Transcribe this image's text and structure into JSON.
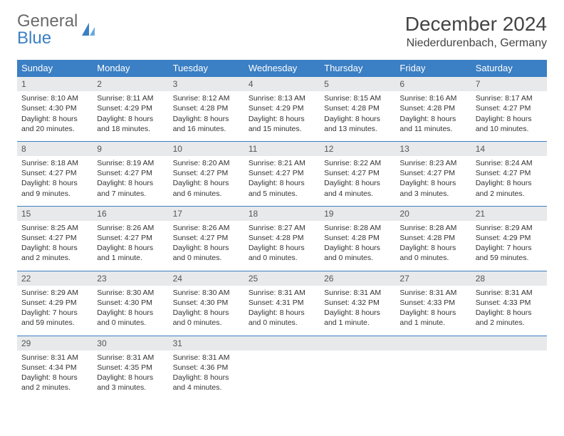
{
  "logo": {
    "top": "General",
    "bottom": "Blue",
    "icon_color": "#3b7fc4"
  },
  "title": "December 2024",
  "location": "Niederdurenbach, Germany",
  "colors": {
    "header_bg": "#3b7fc4",
    "header_fg": "#ffffff",
    "daynum_bg": "#e7e9ea",
    "daynum_border": "#3b7fc4",
    "text": "#333333"
  },
  "weekdays": [
    "Sunday",
    "Monday",
    "Tuesday",
    "Wednesday",
    "Thursday",
    "Friday",
    "Saturday"
  ],
  "weeks": [
    [
      {
        "n": "1",
        "sr": "Sunrise: 8:10 AM",
        "ss": "Sunset: 4:30 PM",
        "d1": "Daylight: 8 hours",
        "d2": "and 20 minutes."
      },
      {
        "n": "2",
        "sr": "Sunrise: 8:11 AM",
        "ss": "Sunset: 4:29 PM",
        "d1": "Daylight: 8 hours",
        "d2": "and 18 minutes."
      },
      {
        "n": "3",
        "sr": "Sunrise: 8:12 AM",
        "ss": "Sunset: 4:28 PM",
        "d1": "Daylight: 8 hours",
        "d2": "and 16 minutes."
      },
      {
        "n": "4",
        "sr": "Sunrise: 8:13 AM",
        "ss": "Sunset: 4:29 PM",
        "d1": "Daylight: 8 hours",
        "d2": "and 15 minutes."
      },
      {
        "n": "5",
        "sr": "Sunrise: 8:15 AM",
        "ss": "Sunset: 4:28 PM",
        "d1": "Daylight: 8 hours",
        "d2": "and 13 minutes."
      },
      {
        "n": "6",
        "sr": "Sunrise: 8:16 AM",
        "ss": "Sunset: 4:28 PM",
        "d1": "Daylight: 8 hours",
        "d2": "and 11 minutes."
      },
      {
        "n": "7",
        "sr": "Sunrise: 8:17 AM",
        "ss": "Sunset: 4:27 PM",
        "d1": "Daylight: 8 hours",
        "d2": "and 10 minutes."
      }
    ],
    [
      {
        "n": "8",
        "sr": "Sunrise: 8:18 AM",
        "ss": "Sunset: 4:27 PM",
        "d1": "Daylight: 8 hours",
        "d2": "and 9 minutes."
      },
      {
        "n": "9",
        "sr": "Sunrise: 8:19 AM",
        "ss": "Sunset: 4:27 PM",
        "d1": "Daylight: 8 hours",
        "d2": "and 7 minutes."
      },
      {
        "n": "10",
        "sr": "Sunrise: 8:20 AM",
        "ss": "Sunset: 4:27 PM",
        "d1": "Daylight: 8 hours",
        "d2": "and 6 minutes."
      },
      {
        "n": "11",
        "sr": "Sunrise: 8:21 AM",
        "ss": "Sunset: 4:27 PM",
        "d1": "Daylight: 8 hours",
        "d2": "and 5 minutes."
      },
      {
        "n": "12",
        "sr": "Sunrise: 8:22 AM",
        "ss": "Sunset: 4:27 PM",
        "d1": "Daylight: 8 hours",
        "d2": "and 4 minutes."
      },
      {
        "n": "13",
        "sr": "Sunrise: 8:23 AM",
        "ss": "Sunset: 4:27 PM",
        "d1": "Daylight: 8 hours",
        "d2": "and 3 minutes."
      },
      {
        "n": "14",
        "sr": "Sunrise: 8:24 AM",
        "ss": "Sunset: 4:27 PM",
        "d1": "Daylight: 8 hours",
        "d2": "and 2 minutes."
      }
    ],
    [
      {
        "n": "15",
        "sr": "Sunrise: 8:25 AM",
        "ss": "Sunset: 4:27 PM",
        "d1": "Daylight: 8 hours",
        "d2": "and 2 minutes."
      },
      {
        "n": "16",
        "sr": "Sunrise: 8:26 AM",
        "ss": "Sunset: 4:27 PM",
        "d1": "Daylight: 8 hours",
        "d2": "and 1 minute."
      },
      {
        "n": "17",
        "sr": "Sunrise: 8:26 AM",
        "ss": "Sunset: 4:27 PM",
        "d1": "Daylight: 8 hours",
        "d2": "and 0 minutes."
      },
      {
        "n": "18",
        "sr": "Sunrise: 8:27 AM",
        "ss": "Sunset: 4:28 PM",
        "d1": "Daylight: 8 hours",
        "d2": "and 0 minutes."
      },
      {
        "n": "19",
        "sr": "Sunrise: 8:28 AM",
        "ss": "Sunset: 4:28 PM",
        "d1": "Daylight: 8 hours",
        "d2": "and 0 minutes."
      },
      {
        "n": "20",
        "sr": "Sunrise: 8:28 AM",
        "ss": "Sunset: 4:28 PM",
        "d1": "Daylight: 8 hours",
        "d2": "and 0 minutes."
      },
      {
        "n": "21",
        "sr": "Sunrise: 8:29 AM",
        "ss": "Sunset: 4:29 PM",
        "d1": "Daylight: 7 hours",
        "d2": "and 59 minutes."
      }
    ],
    [
      {
        "n": "22",
        "sr": "Sunrise: 8:29 AM",
        "ss": "Sunset: 4:29 PM",
        "d1": "Daylight: 7 hours",
        "d2": "and 59 minutes."
      },
      {
        "n": "23",
        "sr": "Sunrise: 8:30 AM",
        "ss": "Sunset: 4:30 PM",
        "d1": "Daylight: 8 hours",
        "d2": "and 0 minutes."
      },
      {
        "n": "24",
        "sr": "Sunrise: 8:30 AM",
        "ss": "Sunset: 4:30 PM",
        "d1": "Daylight: 8 hours",
        "d2": "and 0 minutes."
      },
      {
        "n": "25",
        "sr": "Sunrise: 8:31 AM",
        "ss": "Sunset: 4:31 PM",
        "d1": "Daylight: 8 hours",
        "d2": "and 0 minutes."
      },
      {
        "n": "26",
        "sr": "Sunrise: 8:31 AM",
        "ss": "Sunset: 4:32 PM",
        "d1": "Daylight: 8 hours",
        "d2": "and 1 minute."
      },
      {
        "n": "27",
        "sr": "Sunrise: 8:31 AM",
        "ss": "Sunset: 4:33 PM",
        "d1": "Daylight: 8 hours",
        "d2": "and 1 minute."
      },
      {
        "n": "28",
        "sr": "Sunrise: 8:31 AM",
        "ss": "Sunset: 4:33 PM",
        "d1": "Daylight: 8 hours",
        "d2": "and 2 minutes."
      }
    ],
    [
      {
        "n": "29",
        "sr": "Sunrise: 8:31 AM",
        "ss": "Sunset: 4:34 PM",
        "d1": "Daylight: 8 hours",
        "d2": "and 2 minutes."
      },
      {
        "n": "30",
        "sr": "Sunrise: 8:31 AM",
        "ss": "Sunset: 4:35 PM",
        "d1": "Daylight: 8 hours",
        "d2": "and 3 minutes."
      },
      {
        "n": "31",
        "sr": "Sunrise: 8:31 AM",
        "ss": "Sunset: 4:36 PM",
        "d1": "Daylight: 8 hours",
        "d2": "and 4 minutes."
      },
      {
        "empty": true
      },
      {
        "empty": true
      },
      {
        "empty": true
      },
      {
        "empty": true
      }
    ]
  ]
}
